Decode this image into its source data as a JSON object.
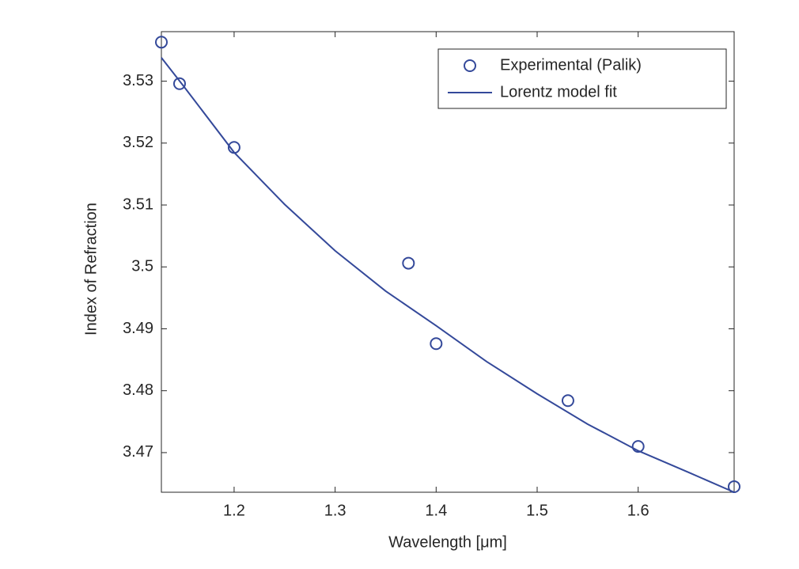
{
  "chart_data": {
    "type": "scatter",
    "xlabel": "Wavelength [μm]",
    "ylabel": "Index of Refraction",
    "xlim": [
      1.128,
      1.695
    ],
    "ylim": [
      3.4636,
      3.538
    ],
    "xticks": [
      1.2,
      1.3,
      1.4,
      1.5,
      1.6
    ],
    "yticks": [
      3.47,
      3.48,
      3.49,
      3.5,
      3.51,
      3.52,
      3.53
    ],
    "legend": "northeast",
    "series": [
      {
        "name": "Experimental (Palik)",
        "type": "scatter",
        "color": "#34499a",
        "x": [
          1.128,
          1.146,
          1.2,
          1.3726,
          1.4,
          1.5305,
          1.6,
          1.695
        ],
        "values": [
          3.5363,
          3.5296,
          3.5193,
          3.5006,
          3.4876,
          3.4784,
          3.471,
          3.4645
        ]
      },
      {
        "name": "Lorentz model fit",
        "type": "line",
        "color": "#34499a",
        "x": [
          1.128,
          1.15,
          1.2,
          1.25,
          1.3,
          1.35,
          1.4,
          1.45,
          1.5,
          1.55,
          1.6,
          1.65,
          1.695
        ],
        "values": [
          3.5338,
          3.5292,
          3.5185,
          3.5101,
          3.5026,
          3.4961,
          3.4905,
          3.4847,
          3.4795,
          3.4746,
          3.4703,
          3.4668,
          3.4636
        ]
      }
    ]
  }
}
